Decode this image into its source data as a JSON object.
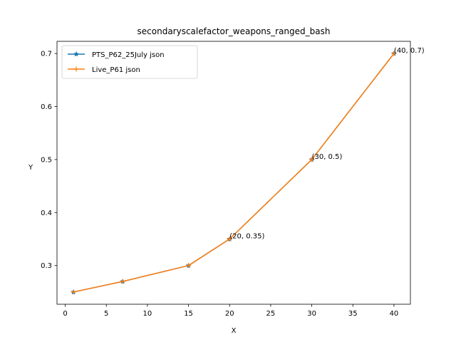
{
  "chart_data": {
    "type": "line",
    "title": "secondaryscalefactor_weapons_ranged_bash",
    "xlabel": "X",
    "ylabel": "Y",
    "xlim": [
      -1,
      42
    ],
    "ylim": [
      0.227,
      0.723
    ],
    "xticks": [
      0,
      5,
      10,
      15,
      20,
      25,
      30,
      35,
      40
    ],
    "yticks": [
      0.3,
      0.4,
      0.5,
      0.6,
      0.7
    ],
    "xtick_labels": [
      "0",
      "5",
      "10",
      "15",
      "20",
      "25",
      "30",
      "35",
      "40"
    ],
    "ytick_labels": [
      "0.3",
      "0.4",
      "0.5",
      "0.6",
      "0.7"
    ],
    "grid": false,
    "legend_position": "upper-left",
    "series": [
      {
        "name": "PTS_P62_25July json",
        "color": "#1f77b4",
        "marker": "star",
        "x": [
          1,
          7,
          15,
          20,
          30,
          40
        ],
        "y": [
          0.25,
          0.27,
          0.3,
          0.35,
          0.5,
          0.7
        ]
      },
      {
        "name": "Live_P61 json",
        "color": "#ff7f0e",
        "marker": "plus",
        "x": [
          1,
          7,
          15,
          20,
          30,
          40
        ],
        "y": [
          0.25,
          0.27,
          0.3,
          0.35,
          0.5,
          0.7
        ]
      }
    ],
    "annotations": [
      {
        "text": "(20, 0.35)",
        "x": 20,
        "y": 0.35
      },
      {
        "text": "(30, 0.5)",
        "x": 30,
        "y": 0.5
      },
      {
        "text": "(40, 0.7)",
        "x": 40,
        "y": 0.7
      }
    ]
  }
}
